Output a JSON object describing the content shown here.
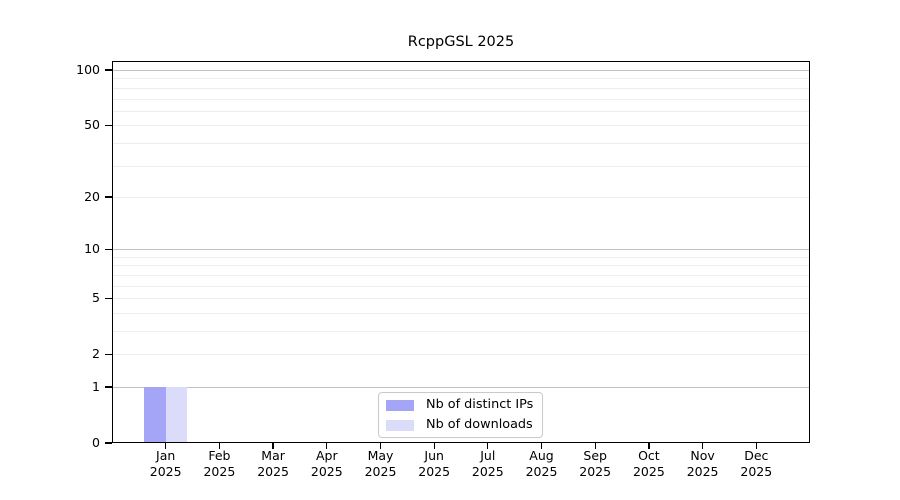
{
  "title": "RcppGSL 2025",
  "chart_data": {
    "type": "bar",
    "title": "RcppGSL 2025",
    "categories": [
      "Jan",
      "Feb",
      "Mar",
      "Apr",
      "May",
      "Jun",
      "Jul",
      "Aug",
      "Sep",
      "Oct",
      "Nov",
      "Dec"
    ],
    "year_label": "2025",
    "series": [
      {
        "name": "Nb of distinct IPs",
        "color": "#a5a5f7",
        "values": [
          1,
          0,
          0,
          0,
          0,
          0,
          0,
          0,
          0,
          0,
          0,
          0
        ]
      },
      {
        "name": "Nb of downloads",
        "color": "#dbdbfa",
        "values": [
          1,
          0,
          0,
          0,
          0,
          0,
          0,
          0,
          0,
          0,
          0,
          0
        ]
      }
    ],
    "xlabel": "",
    "ylabel": "",
    "yscale": "log1p",
    "ylim": [
      0,
      100
    ],
    "yticks": [
      100,
      50,
      20,
      10,
      5,
      2,
      1,
      0
    ],
    "grid_major_values": [
      1,
      10,
      100
    ],
    "grid_minor_values": [
      2,
      3,
      4,
      5,
      6,
      7,
      8,
      9,
      20,
      30,
      40,
      50,
      60,
      70,
      80,
      90
    ],
    "grid": true,
    "legend_position": "inside bottom-center"
  },
  "colors": {
    "major_grid": "#c2c2c2",
    "minor_grid": "#ededed",
    "axis": "#000000",
    "background": "#ffffff"
  }
}
